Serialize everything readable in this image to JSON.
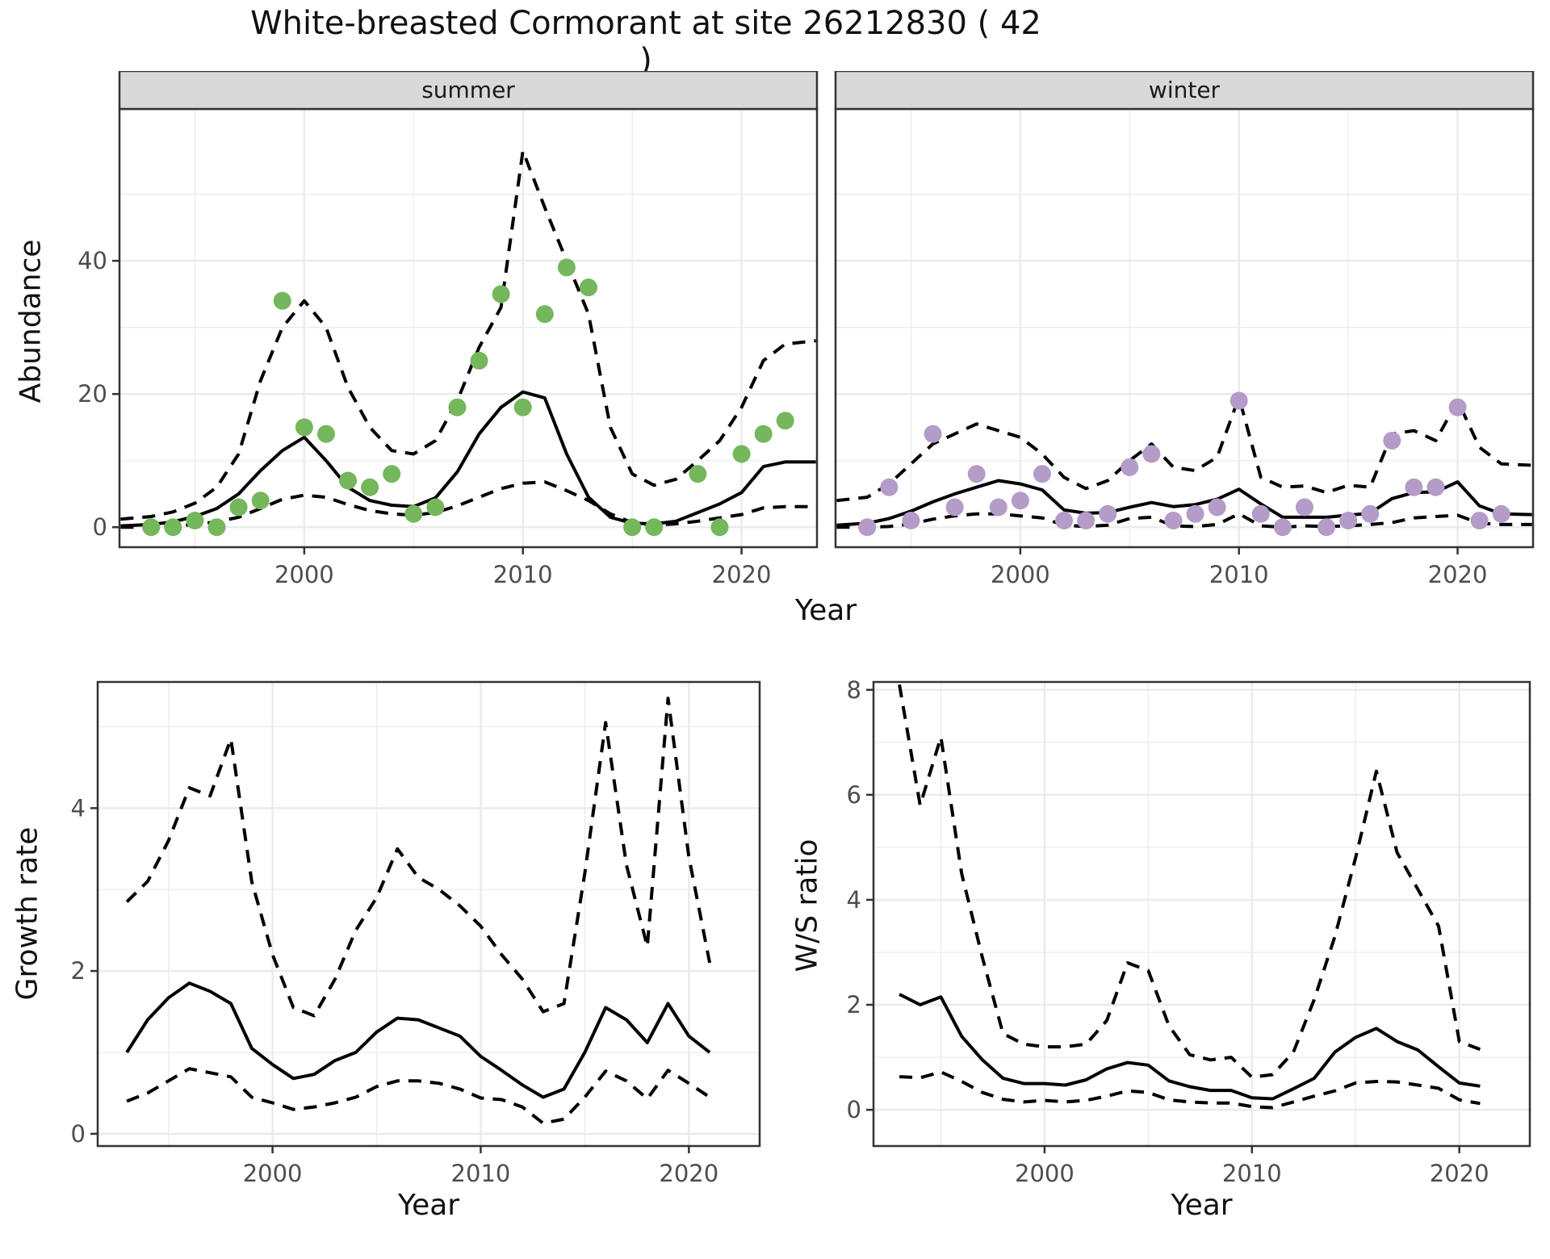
{
  "title": "White-breasted Cormorant at site 26212830 ( 42 )",
  "colors": {
    "summer_point": "#74b75c",
    "winter_point": "#b49bc8",
    "line": "#000000",
    "grid": "#ebebeb",
    "panel_border": "#333333",
    "strip_bg": "#d9d9d9",
    "strip_text": "#1a1a1a",
    "tick_label": "#4d4d4d",
    "background": "#ffffff"
  },
  "facets": [
    {
      "label": "summer"
    },
    {
      "label": "winter"
    }
  ],
  "axes": {
    "abundance": {
      "ylabel": "Abundance",
      "xlabel": "Year"
    },
    "growth": {
      "ylabel": "Growth rate",
      "xlabel": "Year"
    },
    "ws": {
      "ylabel": "W/S ratio",
      "xlabel": "Year"
    }
  },
  "chart_data": [
    {
      "id": "abundance-summer",
      "type": "scatter",
      "facet": "summer",
      "xlabel": "Year",
      "ylabel": "Abundance",
      "xlim": [
        1991.55,
        2023.45
      ],
      "ylim": [
        -3.0,
        62.8
      ],
      "xticks": [
        2000,
        2010,
        2020
      ],
      "xminor": [
        1995,
        2005,
        2015
      ],
      "yticks": [
        0,
        20,
        40
      ],
      "yminor": [
        10,
        30,
        50
      ],
      "series": [
        {
          "name": "ci_upper",
          "style": "dashed",
          "x": [
            1991.6,
            1993,
            1994,
            1995,
            1996,
            1997,
            1998,
            1999,
            2000,
            2001,
            2002,
            2003,
            2004,
            2005,
            2006,
            2007,
            2008,
            2009,
            2010,
            2011,
            2012,
            2013,
            2014,
            2015,
            2016,
            2017,
            2018,
            2019,
            2020,
            2021,
            2022,
            2023.4
          ],
          "y": [
            1.2,
            1.6,
            2.3,
            3.6,
            6.0,
            11.0,
            22.0,
            30.0,
            34.0,
            30.0,
            21.0,
            15.0,
            11.5,
            11.0,
            13.0,
            19.0,
            27.0,
            33.0,
            56.5,
            48.0,
            40.0,
            32.0,
            15.0,
            8.0,
            6.3,
            7.2,
            10.0,
            13.0,
            18.0,
            25.0,
            27.5,
            28.0
          ]
        },
        {
          "name": "ci_lower",
          "style": "dashed",
          "x": [
            1991.6,
            1993,
            1994,
            1995,
            1996,
            1997,
            1998,
            1999,
            2000,
            2001,
            2002,
            2003,
            2004,
            2005,
            2006,
            2007,
            2008,
            2009,
            2010,
            2011,
            2012,
            2013,
            2014,
            2015,
            2016,
            2017,
            2018,
            2019,
            2020,
            2021,
            2022,
            2023.4
          ],
          "y": [
            0,
            0,
            0.2,
            0.4,
            0.8,
            1.5,
            2.8,
            4.2,
            4.8,
            4.5,
            3.4,
            2.5,
            2.0,
            1.8,
            2.2,
            3.2,
            4.5,
            5.8,
            6.6,
            6.8,
            5.5,
            4.0,
            2.0,
            0.7,
            0.3,
            0.5,
            0.9,
            1.4,
            1.9,
            2.9,
            3.1,
            3.1
          ]
        },
        {
          "name": "fit",
          "style": "solid",
          "x": [
            1991.6,
            1993,
            1994,
            1995,
            1996,
            1997,
            1998,
            1999,
            2000,
            2001,
            2002,
            2003,
            2004,
            2005,
            2006,
            2007,
            2008,
            2009,
            2010,
            2011,
            2012,
            2013,
            2014,
            2015,
            2016,
            2017,
            2018,
            2019,
            2020,
            2021,
            2022,
            2023.4
          ],
          "y": [
            0.2,
            0.4,
            0.8,
            1.6,
            2.8,
            5.0,
            8.5,
            11.5,
            13.5,
            10.0,
            6.0,
            4.0,
            3.3,
            3.1,
            4.4,
            8.3,
            14.0,
            18.0,
            20.3,
            19.4,
            11.0,
            4.5,
            1.5,
            0.6,
            0.5,
            0.9,
            2.2,
            3.5,
            5.2,
            9.1,
            9.8,
            9.8
          ]
        },
        {
          "name": "observed",
          "style": "points",
          "x": [
            1993,
            1994,
            1995,
            1996,
            1997,
            1998,
            1999,
            2000,
            2001,
            2002,
            2003,
            2004,
            2005,
            2006,
            2007,
            2008,
            2009,
            2010,
            2011,
            2012,
            2013,
            2015,
            2016,
            2018,
            2019,
            2020,
            2021,
            2022
          ],
          "y": [
            0,
            0,
            1,
            0,
            3,
            4,
            34,
            15,
            14,
            7,
            6,
            8,
            2,
            3,
            18,
            25,
            35,
            18,
            32,
            39,
            36,
            0,
            0,
            8,
            0,
            11,
            14,
            16
          ]
        }
      ]
    },
    {
      "id": "abundance-winter",
      "type": "scatter",
      "facet": "winter",
      "xlabel": "Year",
      "ylabel": "Abundance",
      "xlim": [
        1991.55,
        2023.45
      ],
      "ylim": [
        -3.0,
        62.8
      ],
      "xticks": [
        2000,
        2010,
        2020
      ],
      "xminor": [
        1995,
        2005,
        2015
      ],
      "yticks": [
        0,
        20,
        40
      ],
      "yminor": [
        10,
        30,
        50
      ],
      "series": [
        {
          "name": "ci_upper",
          "style": "dashed",
          "x": [
            1991.6,
            1993,
            1994,
            1995,
            1996,
            1997,
            1998,
            1999,
            2000,
            2001,
            2002,
            2003,
            2004,
            2005,
            2006,
            2007,
            2008,
            2009,
            2010,
            2011,
            2012,
            2013,
            2014,
            2015,
            2016,
            2017,
            2018,
            2019,
            2020,
            2021,
            2022,
            2023.4
          ],
          "y": [
            4.0,
            4.5,
            6.5,
            9.5,
            12.5,
            14.0,
            15.5,
            14.5,
            13.5,
            11.0,
            7.5,
            5.8,
            7.0,
            10.0,
            12.5,
            9.0,
            8.5,
            10.5,
            19.5,
            7.5,
            6.0,
            6.2,
            5.2,
            6.3,
            6.0,
            14.0,
            14.5,
            13.0,
            19.0,
            12.0,
            9.5,
            9.3
          ]
        },
        {
          "name": "ci_lower",
          "style": "dashed",
          "x": [
            1991.6,
            1993,
            1994,
            1995,
            1996,
            1997,
            1998,
            1999,
            2000,
            2001,
            2002,
            2003,
            2004,
            2005,
            2006,
            2007,
            2008,
            2009,
            2010,
            2011,
            2012,
            2013,
            2014,
            2015,
            2016,
            2017,
            2018,
            2019,
            2020,
            2021,
            2022,
            2023.4
          ],
          "y": [
            0,
            0,
            0.1,
            0.5,
            1.2,
            1.7,
            2.0,
            2.0,
            1.7,
            1.4,
            0.3,
            0.1,
            0.3,
            1.3,
            1.5,
            0.2,
            0.1,
            0.4,
            2.0,
            0.2,
            0,
            0.2,
            0.1,
            0.2,
            0.4,
            0.7,
            1.4,
            1.6,
            1.8,
            0.6,
            0.4,
            0.4
          ]
        },
        {
          "name": "fit",
          "style": "solid",
          "x": [
            1991.6,
            1993,
            1994,
            1995,
            1996,
            1997,
            1998,
            1999,
            2000,
            2001,
            2002,
            2003,
            2004,
            2005,
            2006,
            2007,
            2008,
            2009,
            2010,
            2011,
            2012,
            2013,
            2014,
            2015,
            2016,
            2017,
            2018,
            2019,
            2020,
            2021,
            2022,
            2023.4
          ],
          "y": [
            0.3,
            0.6,
            1.3,
            2.4,
            3.8,
            5.0,
            6.0,
            7.0,
            6.5,
            5.6,
            2.6,
            2.1,
            2.2,
            3.0,
            3.7,
            3.1,
            3.4,
            4.2,
            5.7,
            3.5,
            1.5,
            1.5,
            1.5,
            1.8,
            2.1,
            4.3,
            5.2,
            5.3,
            6.8,
            3.2,
            2.0,
            1.9
          ]
        },
        {
          "name": "observed",
          "style": "points",
          "x": [
            1993,
            1994,
            1995,
            1996,
            1997,
            1998,
            1999,
            2000,
            2001,
            2002,
            2003,
            2004,
            2005,
            2006,
            2007,
            2008,
            2009,
            2010,
            2011,
            2012,
            2013,
            2014,
            2015,
            2016,
            2017,
            2018,
            2019,
            2020,
            2021,
            2022
          ],
          "y": [
            0,
            6,
            1,
            14,
            3,
            8,
            3,
            4,
            8,
            1,
            1,
            2,
            9,
            11,
            1,
            2,
            3,
            19,
            2,
            0,
            3,
            0,
            1,
            2,
            13,
            6,
            6,
            18,
            1,
            2
          ]
        }
      ]
    },
    {
      "id": "growth-rate",
      "type": "line",
      "xlabel": "Year",
      "ylabel": "Growth rate",
      "xlim": [
        1991.6,
        2023.4
      ],
      "ylim": [
        -0.15,
        5.55
      ],
      "xticks": [
        2000,
        2010,
        2020
      ],
      "xminor": [
        1995,
        2005,
        2015
      ],
      "yticks": [
        0,
        2,
        4
      ],
      "yminor": [
        1,
        3,
        5
      ],
      "series": [
        {
          "name": "ci_upper",
          "style": "dashed",
          "x": [
            1993,
            1994,
            1995,
            1996,
            1997,
            1998,
            1999,
            2000,
            2001,
            2002,
            2003,
            2004,
            2005,
            2006,
            2007,
            2008,
            2009,
            2010,
            2011,
            2012,
            2013,
            2014,
            2015,
            2016,
            2017,
            2018,
            2019,
            2020,
            2021
          ],
          "y": [
            2.85,
            3.1,
            3.6,
            4.25,
            4.15,
            4.85,
            3.1,
            2.2,
            1.55,
            1.45,
            1.9,
            2.5,
            2.9,
            3.5,
            3.15,
            3.0,
            2.8,
            2.55,
            2.2,
            1.9,
            1.5,
            1.6,
            3.2,
            5.05,
            3.3,
            2.3,
            5.35,
            3.4,
            2.1
          ]
        },
        {
          "name": "ci_lower",
          "style": "dashed",
          "x": [
            1993,
            1994,
            1995,
            1996,
            1997,
            1998,
            1999,
            2000,
            2001,
            2002,
            2003,
            2004,
            2005,
            2006,
            2007,
            2008,
            2009,
            2010,
            2011,
            2012,
            2013,
            2014,
            2015,
            2016,
            2017,
            2018,
            2019,
            2020,
            2021
          ],
          "y": [
            0.4,
            0.5,
            0.65,
            0.8,
            0.75,
            0.7,
            0.45,
            0.38,
            0.3,
            0.33,
            0.38,
            0.45,
            0.58,
            0.65,
            0.65,
            0.62,
            0.55,
            0.44,
            0.42,
            0.33,
            0.13,
            0.18,
            0.45,
            0.77,
            0.65,
            0.43,
            0.78,
            0.62,
            0.45
          ]
        },
        {
          "name": "fit",
          "style": "solid",
          "x": [
            1993,
            1994,
            1995,
            1996,
            1997,
            1998,
            1999,
            2000,
            2001,
            2002,
            2003,
            2004,
            2005,
            2006,
            2007,
            2008,
            2009,
            2010,
            2011,
            2012,
            2013,
            2014,
            2015,
            2016,
            2017,
            2018,
            2019,
            2020,
            2021
          ],
          "y": [
            1.0,
            1.4,
            1.67,
            1.85,
            1.75,
            1.6,
            1.05,
            0.85,
            0.68,
            0.73,
            0.9,
            1.0,
            1.25,
            1.42,
            1.4,
            1.3,
            1.2,
            0.95,
            0.78,
            0.6,
            0.45,
            0.55,
            1.0,
            1.55,
            1.4,
            1.12,
            1.6,
            1.2,
            1.0
          ]
        }
      ]
    },
    {
      "id": "ws-ratio",
      "type": "line",
      "xlabel": "Year",
      "ylabel": "W/S ratio",
      "xlim": [
        1991.75,
        2023.4
      ],
      "ylim": [
        -0.69,
        8.15
      ],
      "xticks": [
        2000,
        2010,
        2020
      ],
      "xminor": [
        1995,
        2005,
        2015
      ],
      "yticks": [
        0,
        2,
        4,
        6,
        8
      ],
      "yminor": [
        1,
        3,
        5,
        7
      ],
      "series": [
        {
          "name": "ci_upper",
          "style": "dashed",
          "x": [
            1993,
            1994,
            1995,
            1996,
            1997,
            1998,
            1999,
            2000,
            2001,
            2002,
            2003,
            2004,
            2005,
            2006,
            2007,
            2008,
            2009,
            2010,
            2011,
            2012,
            2013,
            2014,
            2015,
            2016,
            2017,
            2018,
            2019,
            2020,
            2021
          ],
          "y": [
            8.1,
            5.8,
            7.1,
            4.5,
            2.9,
            1.45,
            1.25,
            1.2,
            1.2,
            1.25,
            1.7,
            2.8,
            2.65,
            1.6,
            1.05,
            0.95,
            1.0,
            0.62,
            0.67,
            1.1,
            2.1,
            3.3,
            4.8,
            6.45,
            4.9,
            4.2,
            3.5,
            1.3,
            1.15
          ]
        },
        {
          "name": "ci_lower",
          "style": "dashed",
          "x": [
            1993,
            1994,
            1995,
            1996,
            1997,
            1998,
            1999,
            2000,
            2001,
            2002,
            2003,
            2004,
            2005,
            2006,
            2007,
            2008,
            2009,
            2010,
            2011,
            2012,
            2013,
            2014,
            2015,
            2016,
            2017,
            2018,
            2019,
            2020,
            2021
          ],
          "y": [
            0.63,
            0.61,
            0.72,
            0.54,
            0.33,
            0.2,
            0.15,
            0.18,
            0.15,
            0.18,
            0.26,
            0.36,
            0.33,
            0.19,
            0.15,
            0.13,
            0.13,
            0.06,
            0.04,
            0.15,
            0.26,
            0.36,
            0.51,
            0.54,
            0.53,
            0.47,
            0.41,
            0.19,
            0.12
          ]
        },
        {
          "name": "fit",
          "style": "solid",
          "x": [
            1993,
            1994,
            1995,
            1996,
            1997,
            1998,
            1999,
            2000,
            2001,
            2002,
            2003,
            2004,
            2005,
            2006,
            2007,
            2008,
            2009,
            2010,
            2011,
            2012,
            2013,
            2014,
            2015,
            2016,
            2017,
            2018,
            2019,
            2020,
            2021
          ],
          "y": [
            2.2,
            2.0,
            2.15,
            1.4,
            0.95,
            0.6,
            0.5,
            0.5,
            0.47,
            0.57,
            0.78,
            0.9,
            0.85,
            0.55,
            0.44,
            0.37,
            0.37,
            0.23,
            0.21,
            0.4,
            0.6,
            1.1,
            1.38,
            1.55,
            1.3,
            1.14,
            0.82,
            0.51,
            0.45
          ]
        }
      ]
    }
  ]
}
